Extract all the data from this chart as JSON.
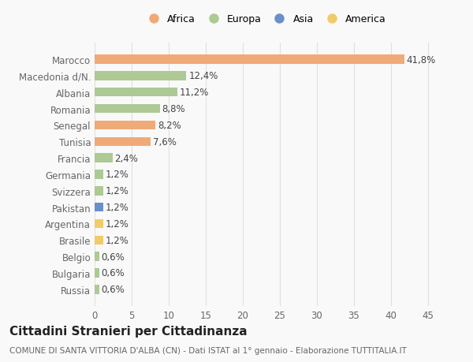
{
  "countries": [
    "Russia",
    "Bulgaria",
    "Belgio",
    "Brasile",
    "Argentina",
    "Pakistan",
    "Svizzera",
    "Germania",
    "Francia",
    "Tunisia",
    "Senegal",
    "Romania",
    "Albania",
    "Macedonia d/N.",
    "Marocco"
  ],
  "values": [
    0.6,
    0.6,
    0.6,
    1.2,
    1.2,
    1.2,
    1.2,
    1.2,
    2.4,
    7.6,
    8.2,
    8.8,
    11.2,
    12.4,
    41.8
  ],
  "labels": [
    "0,6%",
    "0,6%",
    "0,6%",
    "1,2%",
    "1,2%",
    "1,2%",
    "1,2%",
    "1,2%",
    "2,4%",
    "7,6%",
    "8,2%",
    "8,8%",
    "11,2%",
    "12,4%",
    "41,8%"
  ],
  "colors": [
    "#adc994",
    "#adc994",
    "#adc994",
    "#f0cb6a",
    "#f0cb6a",
    "#6b8fc9",
    "#adc994",
    "#adc994",
    "#adc994",
    "#f0aa78",
    "#f0aa78",
    "#adc994",
    "#adc994",
    "#adc994",
    "#f0aa78"
  ],
  "legend_labels": [
    "Africa",
    "Europa",
    "Asia",
    "America"
  ],
  "legend_colors": [
    "#f0aa78",
    "#adc994",
    "#6b8fc9",
    "#f0cb6a"
  ],
  "xlim": [
    0,
    46
  ],
  "xticks": [
    0,
    5,
    10,
    15,
    20,
    25,
    30,
    35,
    40,
    45
  ],
  "bg_color": "#f9f9f9",
  "bar_height": 0.55,
  "grid_color": "#e0e0e0",
  "text_color": "#666666",
  "label_color": "#444444",
  "title": "Cittadini Stranieri per Cittadinanza",
  "subtitle": "COMUNE DI SANTA VITTORIA D'ALBA (CN) - Dati ISTAT al 1° gennaio - Elaborazione TUTTITALIA.IT",
  "label_fontsize": 8.5,
  "tick_fontsize": 8.5,
  "title_fontsize": 11,
  "subtitle_fontsize": 7.5
}
